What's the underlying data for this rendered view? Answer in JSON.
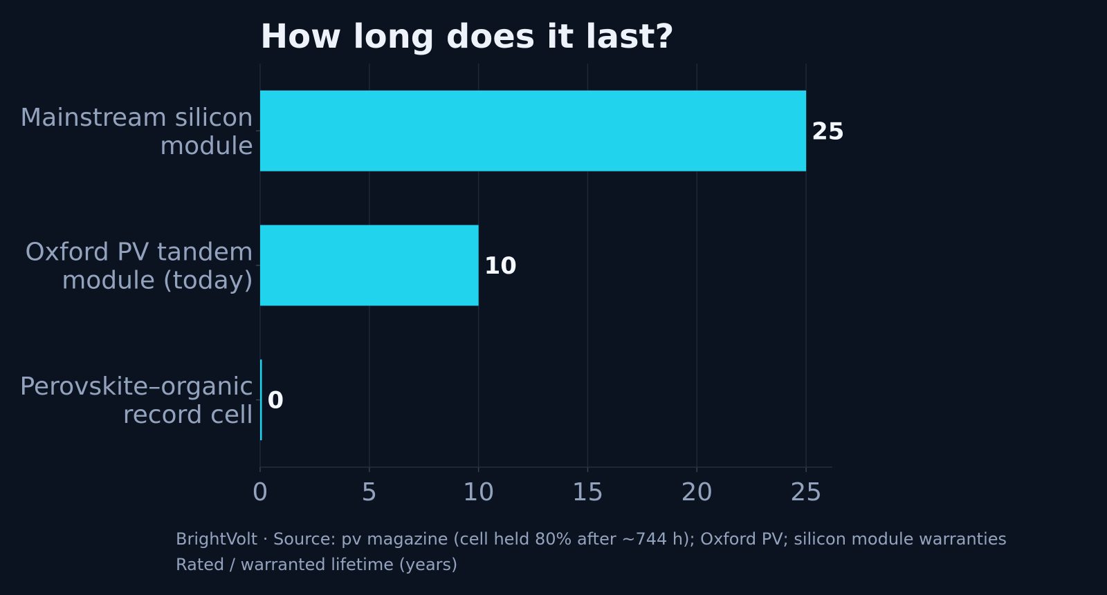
{
  "chart_data": {
    "type": "bar",
    "orientation": "horizontal",
    "title": "How long does it last?",
    "categories": [
      [
        "Mainstream silicon",
        "module"
      ],
      [
        "Oxford PV tandem",
        "module (today)"
      ],
      [
        "Perovskite–organic",
        "record cell"
      ]
    ],
    "values": [
      25,
      10,
      0
    ],
    "value_labels": [
      "25",
      "10",
      "0"
    ],
    "xlim": [
      0,
      26.2
    ],
    "xticks": [
      0,
      5,
      10,
      15,
      20,
      25
    ],
    "grid": "vertical",
    "bar_color": "#22d3ee"
  },
  "footer": {
    "source": "BrightVolt  ·  Source: pv magazine (cell held 80% after ~744 h); Oxford PV; silicon module warranties",
    "axis_note": "Rated / warranted lifetime (years)"
  }
}
